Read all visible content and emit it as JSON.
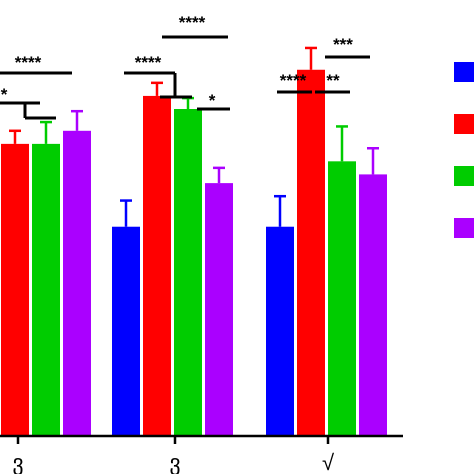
{
  "chart_data": {
    "type": "bar",
    "title": "",
    "xlabel": "",
    "ylabel": "",
    "categories": [
      "ვ",
      "ვ",
      "√"
    ],
    "series": [
      {
        "color": "#0000ff",
        "values": [
          null,
          0.48,
          0.48
        ],
        "errors": [
          null,
          0.06,
          0.07
        ]
      },
      {
        "color": "#ff0000",
        "values": [
          0.67,
          0.78,
          0.84
        ],
        "errors": [
          0.03,
          0.03,
          0.05
        ]
      },
      {
        "color": "#00cc00",
        "values": [
          0.67,
          0.75,
          0.63
        ],
        "errors": [
          0.05,
          0.025,
          0.08
        ]
      },
      {
        "color": "#aa00ff",
        "values": [
          0.7,
          0.58,
          0.6
        ],
        "errors": [
          0.045,
          0.035,
          0.06
        ]
      }
    ],
    "ylim": [
      0,
      1.0
    ],
    "grid": false,
    "legend": {
      "position": "right",
      "labels": []
    },
    "significance": [
      {
        "group": 0,
        "text": "****",
        "kind": "line"
      },
      {
        "group": 0,
        "text": "*",
        "kind": "bracket"
      },
      {
        "group": 1,
        "text": "****",
        "kind": "line"
      },
      {
        "group": 1,
        "text": "****",
        "kind": "bracket"
      },
      {
        "group": 1,
        "text": "*",
        "kind": "line"
      },
      {
        "group": 2,
        "text": "***",
        "kind": "line"
      },
      {
        "group": 2,
        "text": "****",
        "kind": "line"
      },
      {
        "group": 2,
        "text": "**",
        "kind": "line"
      }
    ]
  }
}
